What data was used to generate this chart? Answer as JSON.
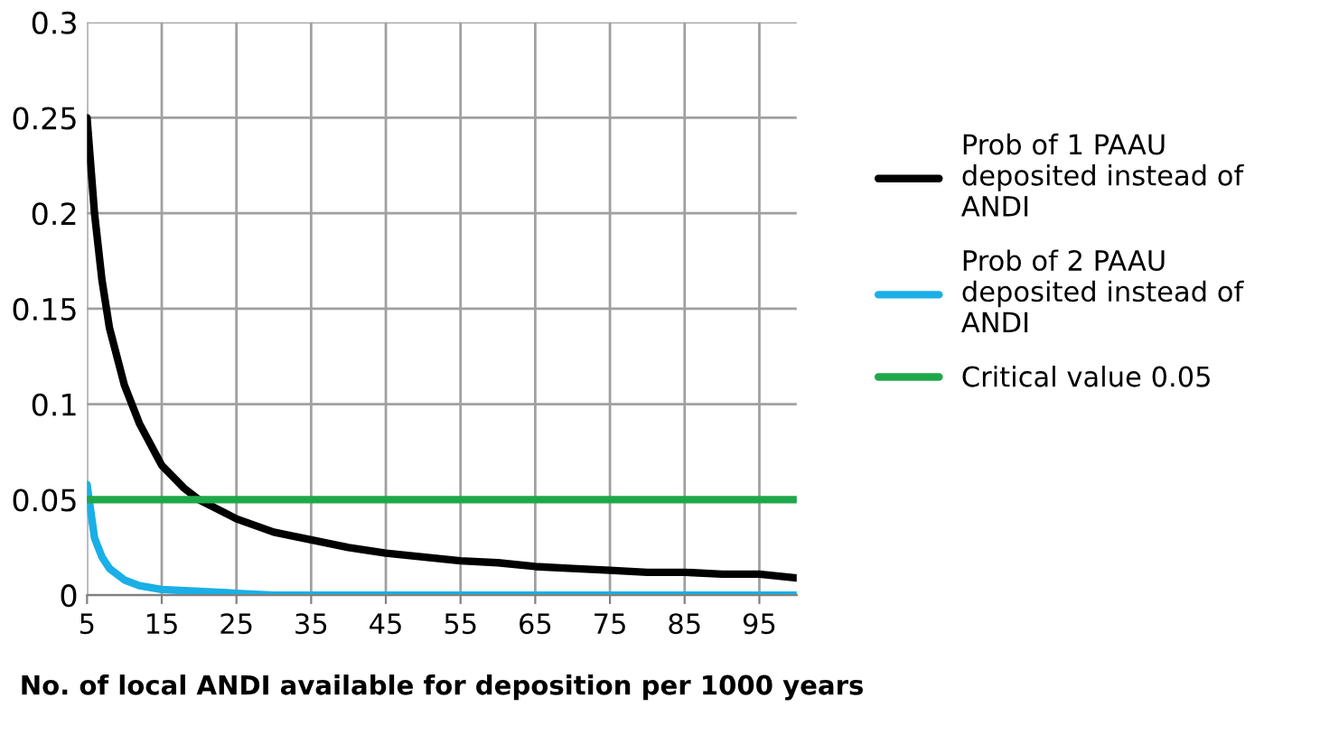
{
  "chart_data": {
    "type": "line",
    "xlabel": "No. of local ANDI available for deposition per 1000 years",
    "xlim": [
      5,
      100
    ],
    "xticks": [
      5,
      15,
      25,
      35,
      45,
      55,
      65,
      75,
      85,
      95
    ],
    "ylim": [
      0,
      0.3
    ],
    "yticks": [
      0,
      0.05,
      0.1,
      0.15,
      0.2,
      0.25,
      0.3
    ],
    "grid": true,
    "legend": "right",
    "series": [
      {
        "name": "Prob of 1 PAAU\ndeposited instead of\nANDI",
        "color": "#000000",
        "x": [
          5,
          6,
          7,
          8,
          10,
          12,
          15,
          18,
          20,
          25,
          30,
          35,
          40,
          45,
          50,
          55,
          60,
          65,
          70,
          75,
          80,
          85,
          90,
          95,
          100
        ],
        "values": [
          0.25,
          0.2,
          0.165,
          0.14,
          0.11,
          0.09,
          0.068,
          0.056,
          0.05,
          0.04,
          0.033,
          0.029,
          0.025,
          0.022,
          0.02,
          0.018,
          0.017,
          0.015,
          0.014,
          0.013,
          0.012,
          0.012,
          0.011,
          0.011,
          0.009
        ]
      },
      {
        "name": "Prob of 2 PAAU\ndeposited instead of\nANDI",
        "color": "#1aafe6",
        "x": [
          5,
          6,
          7,
          8,
          10,
          12,
          15,
          20,
          25,
          30,
          100
        ],
        "values": [
          0.058,
          0.03,
          0.02,
          0.014,
          0.008,
          0.005,
          0.003,
          0.002,
          0.001,
          0,
          0
        ]
      },
      {
        "name": "Critical value 0.05",
        "color": "#1ea84a",
        "x": [
          5,
          100
        ],
        "values": [
          0.05,
          0.05
        ]
      }
    ]
  }
}
